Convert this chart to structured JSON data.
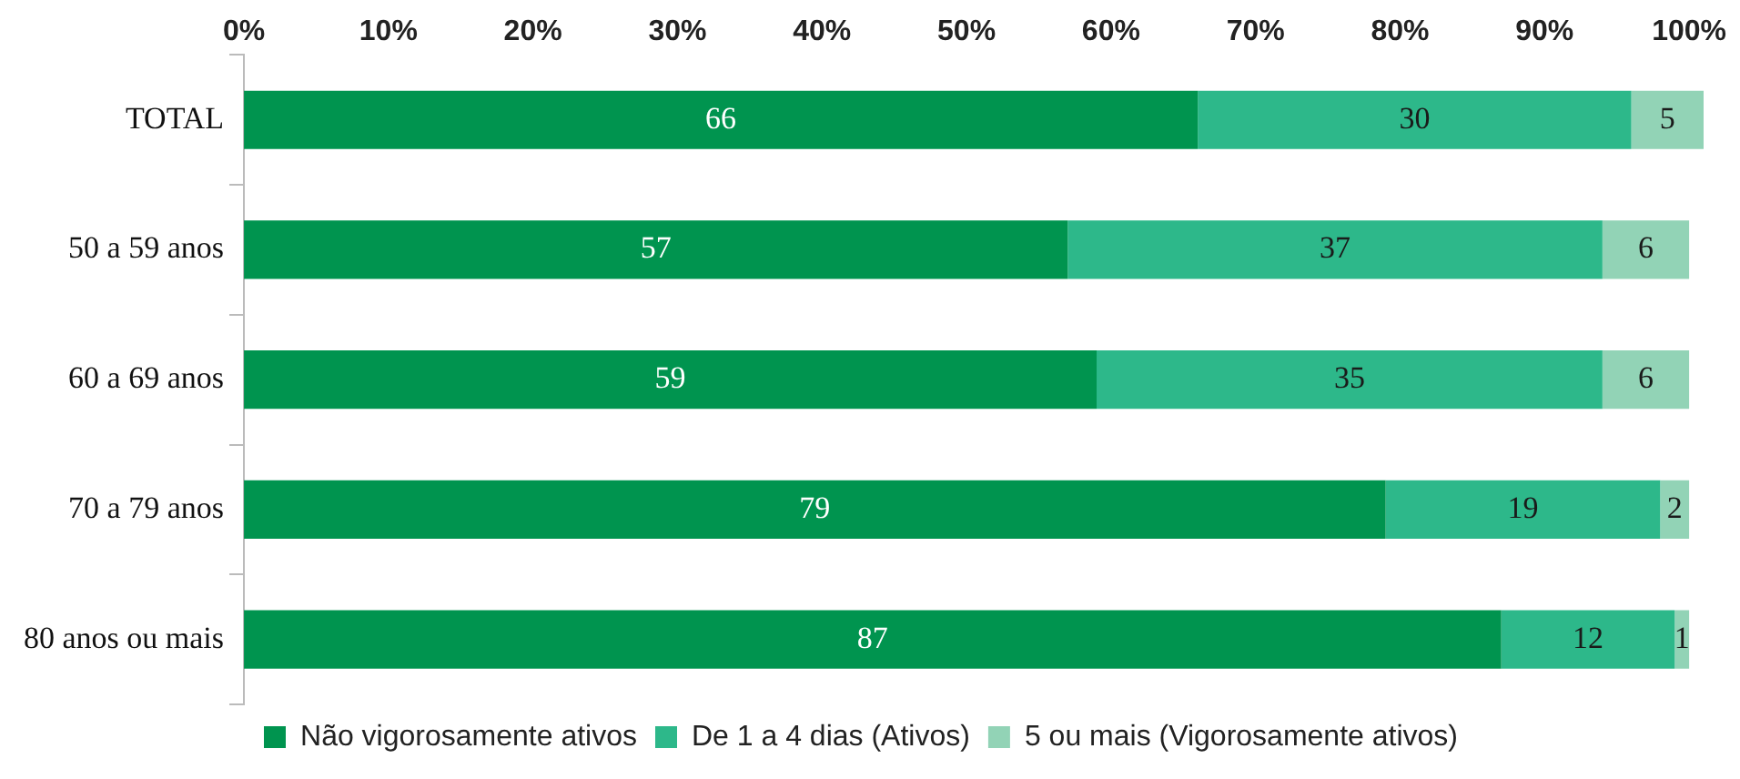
{
  "chart_data": {
    "type": "bar",
    "orientation": "horizontal",
    "stacked": true,
    "categories": [
      "TOTAL",
      "50 a 59 anos",
      "60 a 69 anos",
      "70 a 79 anos",
      "80 anos ou mais"
    ],
    "series": [
      {
        "name": "Não vigorosamente ativos",
        "color": "#00944f",
        "values": [
          66,
          57,
          59,
          79,
          87
        ]
      },
      {
        "name": "De 1 a 4 dias (Ativos)",
        "color": "#2db88a",
        "values": [
          30,
          37,
          35,
          19,
          12
        ]
      },
      {
        "name": "5 ou mais (Vigorosamente ativos)",
        "color": "#92d3b6",
        "values": [
          5,
          6,
          6,
          2,
          1
        ]
      }
    ],
    "xlim": [
      0,
      101
    ],
    "xticks": [
      {
        "value": 0,
        "label": "0%"
      },
      {
        "value": 10,
        "label": "10%"
      },
      {
        "value": 20,
        "label": "20%"
      },
      {
        "value": 30,
        "label": "30%"
      },
      {
        "value": 40,
        "label": "40%"
      },
      {
        "value": 50,
        "label": "50%"
      },
      {
        "value": 60,
        "label": "60%"
      },
      {
        "value": 70,
        "label": "70%"
      },
      {
        "value": 80,
        "label": "80%"
      },
      {
        "value": 90,
        "label": "90%"
      },
      {
        "value": 100,
        "label": "100%"
      }
    ],
    "grid": false,
    "legend": "bottom",
    "data_labels": true
  }
}
